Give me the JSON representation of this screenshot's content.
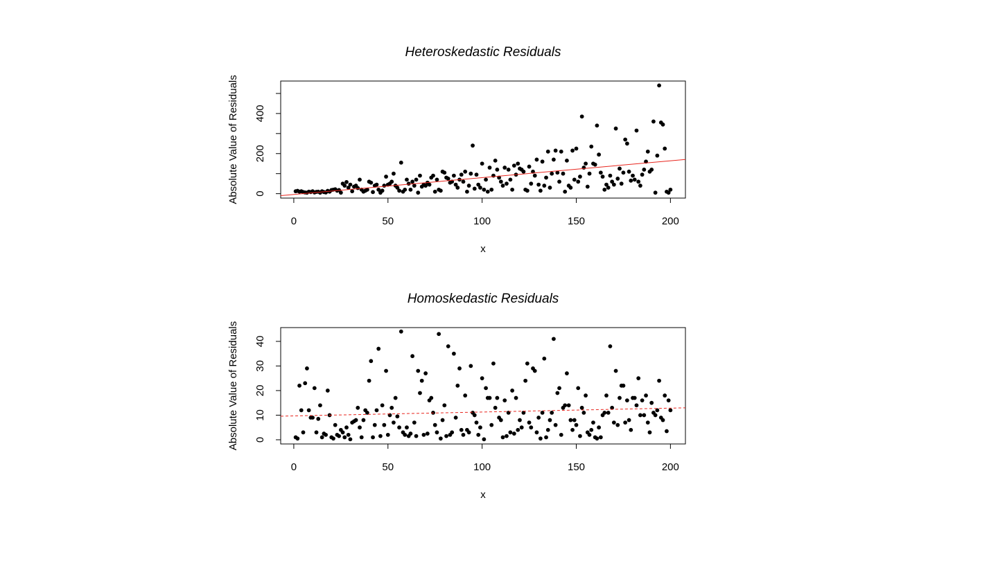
{
  "chart_data": [
    {
      "type": "scatter",
      "title": "Heteroskedastic Residuals",
      "x_label": "x",
      "y_label": "Absolute Value of Residuals",
      "xlim": [
        -6.96,
        207.96
      ],
      "xticks": [
        0,
        50,
        100,
        150,
        200
      ],
      "ylim": [
        -22,
        562
      ],
      "yticks": [
        0,
        200,
        400
      ],
      "yminor_ticks": [
        100,
        300,
        500
      ],
      "point_color": "#000000",
      "fit": {
        "intercept": -4,
        "slope": 0.84,
        "color": "#e8241c",
        "dashed": false
      },
      "x": [
        1,
        2,
        3,
        4,
        5,
        6,
        7,
        8,
        9,
        10,
        11,
        12,
        13,
        14,
        15,
        16,
        17,
        18,
        19,
        20,
        21,
        22,
        23,
        24,
        25,
        26,
        27,
        28,
        29,
        30,
        31,
        32,
        33,
        34,
        35,
        36,
        37,
        38,
        39,
        40,
        41,
        42,
        43,
        44,
        45,
        46,
        47,
        48,
        49,
        50,
        51,
        52,
        53,
        54,
        55,
        56,
        57,
        58,
        59,
        60,
        61,
        62,
        63,
        64,
        65,
        66,
        67,
        68,
        69,
        70,
        71,
        72,
        73,
        74,
        75,
        76,
        77,
        78,
        79,
        80,
        81,
        82,
        83,
        84,
        85,
        86,
        87,
        88,
        89,
        90,
        91,
        92,
        93,
        94,
        95,
        96,
        97,
        98,
        99,
        100,
        101,
        102,
        103,
        104,
        105,
        106,
        107,
        108,
        109,
        110,
        111,
        112,
        113,
        114,
        115,
        116,
        117,
        118,
        119,
        120,
        121,
        122,
        123,
        124,
        125,
        126,
        127,
        128,
        129,
        130,
        131,
        132,
        133,
        134,
        135,
        136,
        137,
        138,
        139,
        140,
        141,
        142,
        143,
        144,
        145,
        146,
        147,
        148,
        149,
        150,
        151,
        152,
        153,
        154,
        155,
        156,
        157,
        158,
        159,
        160,
        161,
        162,
        163,
        164,
        165,
        166,
        167,
        168,
        169,
        170,
        171,
        172,
        173,
        174,
        175,
        176,
        177,
        178,
        179,
        180,
        181,
        182,
        183,
        184,
        185,
        186,
        187,
        188,
        189,
        190,
        191,
        192,
        193,
        194,
        195,
        196,
        197,
        198,
        199,
        200
      ],
      "values": [
        12,
        14,
        10,
        12,
        8,
        6,
        5,
        10,
        8,
        12,
        6,
        9,
        10,
        5,
        12,
        8,
        6,
        14,
        10,
        18,
        20,
        22,
        15,
        18,
        5,
        50,
        40,
        58,
        30,
        45,
        12,
        35,
        40,
        28,
        70,
        20,
        10,
        15,
        20,
        60,
        55,
        8,
        40,
        45,
        20,
        5,
        15,
        40,
        85,
        45,
        50,
        60,
        100,
        40,
        30,
        15,
        155,
        10,
        20,
        70,
        50,
        20,
        60,
        40,
        70,
        5,
        90,
        35,
        45,
        40,
        55,
        45,
        80,
        90,
        10,
        70,
        20,
        15,
        110,
        105,
        80,
        75,
        55,
        60,
        90,
        45,
        30,
        70,
        95,
        60,
        110,
        10,
        40,
        100,
        240,
        25,
        95,
        45,
        30,
        150,
        20,
        70,
        10,
        130,
        20,
        90,
        165,
        120,
        80,
        60,
        40,
        130,
        50,
        120,
        70,
        20,
        140,
        95,
        150,
        125,
        120,
        110,
        20,
        15,
        135,
        50,
        110,
        90,
        170,
        45,
        15,
        160,
        40,
        80,
        210,
        30,
        100,
        170,
        215,
        105,
        60,
        210,
        100,
        10,
        165,
        40,
        30,
        215,
        70,
        225,
        60,
        85,
        385,
        130,
        150,
        35,
        100,
        235,
        150,
        145,
        340,
        195,
        105,
        85,
        20,
        45,
        30,
        90,
        60,
        45,
        325,
        75,
        125,
        50,
        105,
        270,
        250,
        110,
        65,
        90,
        70,
        315,
        60,
        40,
        95,
        120,
        160,
        210,
        110,
        120,
        360,
        5,
        190,
        540,
        355,
        345,
        225,
        10,
        5,
        20
      ]
    },
    {
      "type": "scatter",
      "title": "Homoskedastic Residuals",
      "x_label": "x",
      "y_label": "Absolute Value of Residuals",
      "xlim": [
        -6.96,
        207.96
      ],
      "xticks": [
        0,
        50,
        100,
        150,
        200
      ],
      "ylim": [
        -1.7,
        45.6
      ],
      "yticks": [
        0,
        10,
        20,
        30,
        40
      ],
      "point_color": "#000000",
      "fit": {
        "intercept": 9.7,
        "slope": 0.0158,
        "color": "#e8241c",
        "dashed": true
      },
      "x": [
        1,
        2,
        3,
        4,
        5,
        6,
        7,
        8,
        9,
        10,
        11,
        12,
        13,
        14,
        15,
        16,
        17,
        18,
        19,
        20,
        21,
        22,
        23,
        24,
        25,
        26,
        27,
        28,
        29,
        30,
        31,
        32,
        33,
        34,
        35,
        36,
        37,
        38,
        39,
        40,
        41,
        42,
        43,
        44,
        45,
        46,
        47,
        48,
        49,
        50,
        51,
        52,
        53,
        54,
        55,
        56,
        57,
        58,
        59,
        60,
        61,
        62,
        63,
        64,
        65,
        66,
        67,
        68,
        69,
        70,
        71,
        72,
        73,
        74,
        75,
        76,
        77,
        78,
        79,
        80,
        81,
        82,
        83,
        84,
        85,
        86,
        87,
        88,
        89,
        90,
        91,
        92,
        93,
        94,
        95,
        96,
        97,
        98,
        99,
        100,
        101,
        102,
        103,
        104,
        105,
        106,
        107,
        108,
        109,
        110,
        111,
        112,
        113,
        114,
        115,
        116,
        117,
        118,
        119,
        120,
        121,
        122,
        123,
        124,
        125,
        126,
        127,
        128,
        129,
        130,
        131,
        132,
        133,
        134,
        135,
        136,
        137,
        138,
        139,
        140,
        141,
        142,
        143,
        144,
        145,
        146,
        147,
        148,
        149,
        150,
        151,
        152,
        153,
        154,
        155,
        156,
        157,
        158,
        159,
        160,
        161,
        162,
        163,
        164,
        165,
        166,
        167,
        168,
        169,
        170,
        171,
        172,
        173,
        174,
        175,
        176,
        177,
        178,
        179,
        180,
        181,
        182,
        183,
        184,
        185,
        186,
        187,
        188,
        189,
        190,
        191,
        192,
        193,
        194,
        195,
        196,
        197,
        198,
        199,
        200
      ],
      "values": [
        1,
        0.5,
        22,
        12,
        3,
        23,
        29,
        12,
        9,
        9,
        21,
        3,
        8.5,
        14,
        1,
        2.5,
        2,
        20,
        10,
        1,
        0.5,
        6,
        2,
        1.5,
        4,
        3,
        1,
        5,
        2,
        0.2,
        7,
        7.5,
        8,
        13,
        5,
        1,
        8,
        12,
        11,
        24,
        32,
        1,
        6,
        12,
        37,
        1.5,
        14,
        6,
        28,
        2,
        10,
        13,
        7,
        17,
        9.5,
        5,
        44,
        3,
        2,
        5,
        1.5,
        2.5,
        34,
        7,
        1.5,
        28,
        19,
        24,
        2,
        27,
        2.5,
        16,
        17,
        11,
        6,
        3,
        43,
        0.5,
        8,
        14,
        1.5,
        38,
        2,
        3,
        35,
        9,
        22,
        29,
        4,
        2,
        18,
        4,
        3,
        30,
        11,
        10,
        7,
        2,
        5,
        25,
        0.2,
        21,
        17,
        17,
        6,
        31,
        13,
        17,
        9,
        8,
        1,
        16,
        1.5,
        11,
        3,
        20,
        2.5,
        17,
        4,
        8,
        5,
        11,
        24,
        31,
        7,
        5,
        29,
        28,
        3,
        9,
        0.5,
        11,
        33,
        1,
        4,
        8,
        11,
        41,
        6,
        19,
        21,
        2,
        13,
        14,
        27,
        14,
        8,
        4,
        8,
        6,
        21,
        1.5,
        13,
        11,
        18,
        3,
        2,
        4,
        7,
        1,
        0.5,
        5,
        1,
        10,
        11,
        18,
        11,
        38,
        13,
        7,
        28,
        6,
        17,
        22,
        22,
        7,
        16,
        8,
        4,
        17,
        17,
        14,
        25,
        10,
        16,
        10,
        18,
        7,
        3,
        15,
        11,
        10,
        12,
        24,
        9,
        8,
        18,
        3.5,
        16,
        12
      ]
    }
  ]
}
